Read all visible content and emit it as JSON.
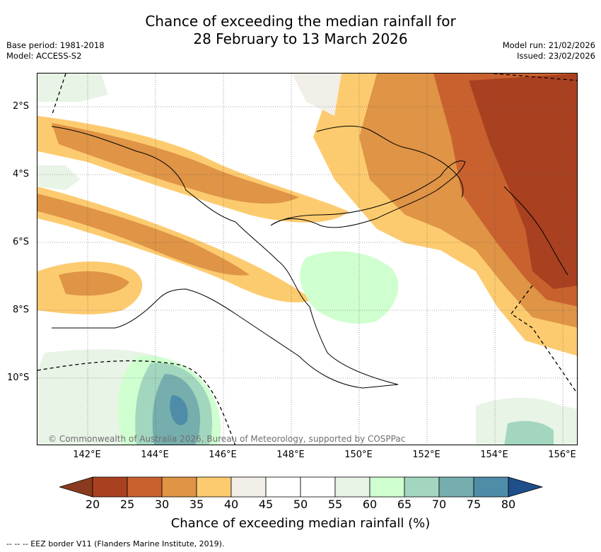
{
  "header": {
    "title_line1": "Chance of exceeding the median rainfall for",
    "title_line2": "28 February to 13 March 2026",
    "base_period": "Base period: 1981-2018",
    "model": "Model: ACCESS-S2",
    "model_run": "Model run: 21/02/2026",
    "issued": "Issued: 23/02/2026"
  },
  "map": {
    "lat_labels": [
      "2°S",
      "4°S",
      "6°S",
      "8°S",
      "10°S"
    ],
    "lon_labels": [
      "142°E",
      "144°E",
      "146°E",
      "148°E",
      "150°E",
      "152°E",
      "154°E",
      "156°E"
    ],
    "lat_values": [
      -2,
      -4,
      -6,
      -8,
      -10
    ],
    "lon_values": [
      142,
      144,
      146,
      148,
      150,
      152,
      154,
      156
    ],
    "copyright": "© Commonwealth of Australia 2026, Bureau of Meteorology, supported by COSPPac"
  },
  "colorbar": {
    "ticks": [
      "20",
      "25",
      "30",
      "35",
      "40",
      "45",
      "50",
      "55",
      "60",
      "65",
      "70",
      "75",
      "80"
    ],
    "colors": [
      "#a9401f",
      "#c9612f",
      "#df9446",
      "#fdcb6f",
      "#f2eee8",
      "#ffffff",
      "#ffffff",
      "#e8f4e6",
      "#cfffcf",
      "#a3d6bf",
      "#76aeae",
      "#4e8ca8"
    ],
    "low_color": "#8a3a1e",
    "high_color": "#1e4f8a",
    "label": "Chance of exceeding median rainfall (%)"
  },
  "legend_note": "-- -- -- EEZ border V11 (Flanders Marine Institute, 2019)."
}
